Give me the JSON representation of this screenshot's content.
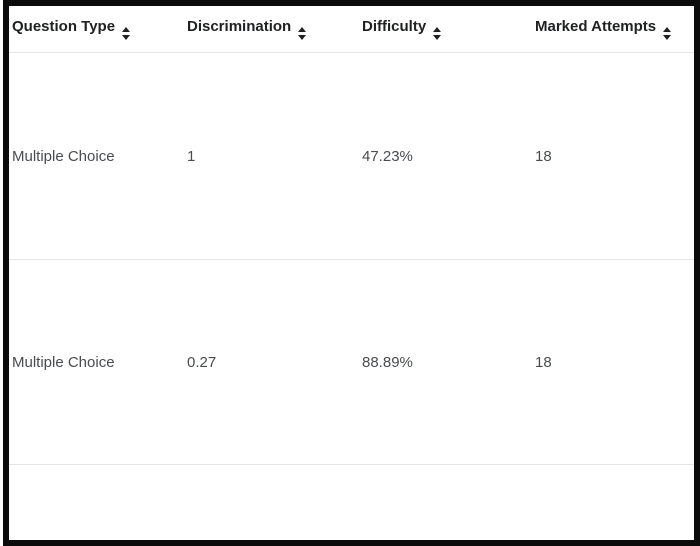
{
  "table": {
    "columns": [
      "Question Type",
      "Discrimination",
      "Difficulty",
      "Marked Attempts"
    ],
    "rows": [
      {
        "cells": [
          "Multiple Choice",
          "1",
          "47.23%",
          "18"
        ]
      },
      {
        "cells": [
          "Multiple Choice",
          "0.27",
          "88.89%",
          "18"
        ]
      }
    ],
    "sort_icon": "up-down-triangles",
    "colors": {
      "header_text": "#202122",
      "body_text": "#494c4e",
      "row_divider": "#e4e4e4",
      "frame_border": "#0b0b0b",
      "background": "#ffffff"
    }
  }
}
